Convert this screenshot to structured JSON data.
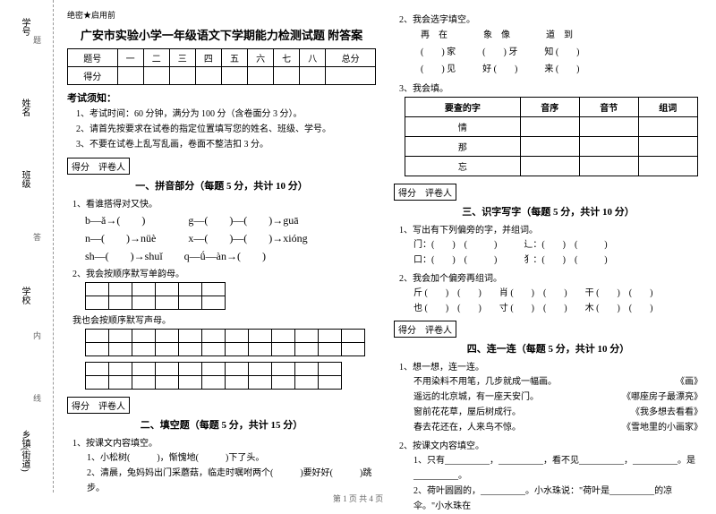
{
  "gutter": {
    "labels": [
      "学号",
      "姓名",
      "班级",
      "学校",
      "乡镇(街道)"
    ],
    "hints": [
      "题",
      "答",
      "内",
      "线",
      "封"
    ]
  },
  "secret": "绝密★启用前",
  "title": "广安市实验小学一年级语文下学期能力检测试题 附答案",
  "scoreHeaders": [
    "题号",
    "一",
    "二",
    "三",
    "四",
    "五",
    "六",
    "七",
    "八",
    "总分"
  ],
  "scoreRow": "得分",
  "instructionsTitle": "考试须知：",
  "instructions": [
    "1、考试时间：60 分钟，满分为 100 分（含卷面分 3 分）。",
    "2、请首先按要求在试卷的指定位置填写您的姓名、班级、学号。",
    "3、不要在试卷上乱写乱画，卷面不整洁扣 3 分。"
  ],
  "raterText": "得分　评卷人",
  "part1": {
    "title": "一、拼音部分（每题 5 分，共计 10 分）",
    "q1": "1、看谁搭得对又快。",
    "rows": [
      "b—ǎ→(　　)　　　　g—(　　)—(　　)→guā",
      "n—(　　)→nüè　　　x—(　　)—(　　)→xióng",
      "sh—(　　)→shuǐ　　q—ǘ—àn→(　　)"
    ],
    "q2": "2、我会按顺序默写单韵母。",
    "q3": "我也会按顺序默写声母。"
  },
  "part2": {
    "title": "二、填空题（每题 5 分，共计 15 分）",
    "q1": "1、按课文内容填空。",
    "l1": "1、小松树(　　　)，惭愧地(　　　)下了头。",
    "l2": "2、清晨，兔妈妈出门采蘑菇，临走时嘱咐两个(　　　)要好好(　　　)跳步。"
  },
  "right": {
    "q2": "2、我会选字填空。",
    "pairs": [
      [
        "再　在",
        "象　像",
        "道　到"
      ],
      [
        "(　　) 家",
        "(　　) 牙",
        "知 (　　)"
      ],
      [
        "(　　) 见",
        "好 (　　)",
        "来 (　　)"
      ]
    ],
    "q3": "3、我会填。",
    "tableHead": [
      "要查的字",
      "音序",
      "音节",
      "组词"
    ],
    "tableRows": [
      "情",
      "那",
      "忘"
    ]
  },
  "part3": {
    "title": "三、识字写字（每题 5 分，共计 10 分）",
    "q1": "1、写出有下列偏旁的字，并组词。",
    "lines": [
      "门：(　　)　(　　　)　　　辶：(　　)　(　　　)",
      "口：(　　)　(　　　)　　　犭：(　　)　(　　　)"
    ],
    "q2": "2、我会加个偏旁再组词。",
    "lines2": [
      "斤 (　　)　(　　)　　肖 (　　)　(　　)　　干 (　　)　(　　)",
      "也 (　　)　(　　)　　寸 (　　)　(　　)　　木 (　　)　(　　)"
    ]
  },
  "part4": {
    "title": "四、连一连（每题 5 分，共计 10 分）",
    "q1": "1、想一想，连一连。",
    "pairs": [
      [
        "不用染料不用笔，几步就成一幅画。",
        "《画》"
      ],
      [
        "遥远的北京城，有一座天安门。",
        "《哪座房子最漂亮》"
      ],
      [
        "窗前花花草，屋后树成行。",
        "《我多想去看看》"
      ],
      [
        "春去花还在，人来鸟不惊。",
        "《雪地里的小画家》"
      ]
    ],
    "q2": "2、按课文内容填空。",
    "l1": "1、只有__________，__________，看不见__________，__________。是__________。",
    "l2": "2、荷叶圆圆的，__________。小水珠说：\"荷叶是__________的凉伞。\"小水珠在"
  },
  "footer": "第 1 页 共 4 页"
}
